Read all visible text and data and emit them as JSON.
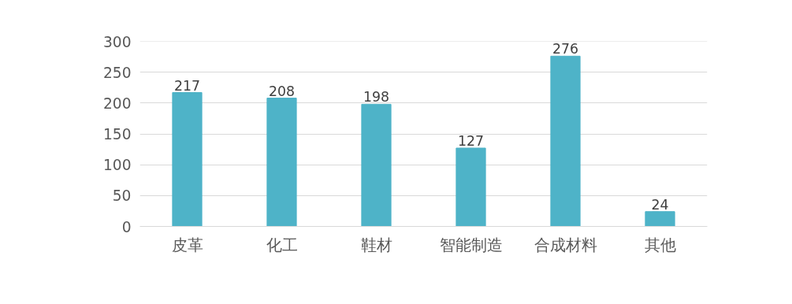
{
  "chart_data": {
    "type": "bar",
    "categories": [
      "皮革",
      "化工",
      "鞋材",
      "智能制造",
      "合成材料",
      "其他"
    ],
    "values": [
      217,
      208,
      198,
      127,
      276,
      24
    ],
    "color": "#4eb3c8",
    "ylim": [
      0,
      300
    ],
    "yticks": [
      0,
      50,
      100,
      150,
      200,
      250,
      300
    ],
    "grid": "y",
    "data_labels": true
  }
}
